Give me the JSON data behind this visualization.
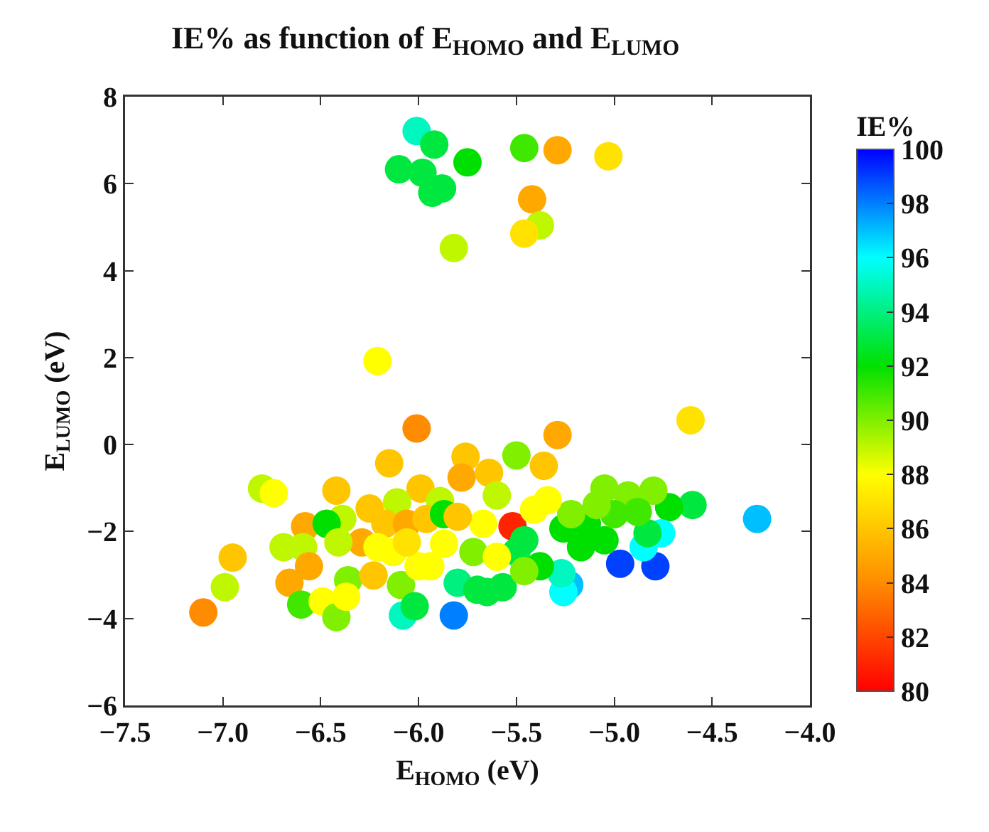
{
  "chart_data": {
    "type": "scatter",
    "title": "IE% as function of E$_{HOMO}$ and E$_{LUMO}$",
    "xlabel": "E$_{HOMO}$ (eV)",
    "ylabel": "E$_{LUMO}$ (eV)",
    "clabel": "IE%",
    "xlim": [
      -7.5,
      -4.0
    ],
    "xticks": [
      -7.5,
      {
        "value": -7,
        "label": "−7.0"
      },
      -6.5,
      {
        "value": -6,
        "label": "−6.0"
      },
      -5.5,
      {
        "value": -5,
        "label": "−5.0"
      },
      -4.5,
      {
        "value": -4,
        "label": "−4.0"
      }
    ],
    "ylim": [
      -6,
      8
    ],
    "yticks": [
      -6,
      -4,
      -2,
      0,
      2,
      4,
      6,
      8
    ],
    "clim": [
      80,
      100
    ],
    "cticks": [
      80,
      82,
      84,
      86,
      88,
      90,
      92,
      94,
      96,
      98,
      100
    ],
    "grid": false,
    "legend": false,
    "marker": "circle",
    "x": [
      -6.01,
      -5.92,
      -6.1,
      -5.98,
      -5.93,
      -5.88,
      -5.75,
      -5.46,
      -5.29,
      -5.03,
      -5.42,
      -5.38,
      -5.46,
      -5.82,
      -6.21,
      -6.01,
      -6.15,
      -5.76,
      -5.78,
      -5.99,
      -6.42,
      -6.8,
      -6.74,
      -6.25,
      -6.11,
      -5.89,
      -6.39,
      -6.58,
      -6.47,
      -6.29,
      -6.69,
      -6.59,
      -6.41,
      -6.56,
      -6.95,
      -6.66,
      -6.99,
      -7.1,
      -6.6,
      -6.49,
      -6.42,
      -6.36,
      -6.37,
      -6.23,
      -6.13,
      -6.09,
      -6.0,
      -5.94,
      -5.87,
      -6.08,
      -6.02,
      -5.8,
      -5.82,
      -6.17,
      -6.06,
      -5.96,
      -5.87,
      -6.21,
      -6.06,
      -5.72,
      -5.7,
      -4.61,
      -5.29,
      -5.5,
      -5.36,
      -5.64,
      -4.27,
      -4.6,
      -4.72,
      -4.8,
      -5.05,
      -4.93,
      -4.97,
      -4.79,
      -4.76,
      -4.85,
      -4.83,
      -5.52,
      -5.46,
      -5.5,
      -5.23,
      -5.26,
      -5.27,
      -5.57,
      -5.65,
      -5.38,
      -5.26,
      -5.14,
      -5.05,
      -5.0,
      -4.88,
      -5.09,
      -5.22,
      -5.34,
      -5.41,
      -5.6,
      -5.67,
      -5.6,
      -5.46,
      -5.17,
      -5.8
    ],
    "values": [
      7.21,
      6.9,
      6.33,
      6.25,
      5.79,
      5.89,
      6.49,
      6.82,
      6.77,
      6.63,
      5.64,
      5.04,
      4.85,
      4.52,
      1.92,
      0.37,
      -0.43,
      -0.28,
      -0.76,
      -1.01,
      -1.06,
      -1.01,
      -1.12,
      -1.47,
      -1.33,
      -1.3,
      -1.71,
      -1.88,
      -1.82,
      -2.25,
      -2.36,
      -2.36,
      -2.25,
      -2.8,
      -2.6,
      -3.18,
      -3.28,
      -3.86,
      -3.68,
      -3.61,
      -3.97,
      -3.12,
      -3.5,
      -3.01,
      -2.47,
      -3.23,
      -2.8,
      -2.8,
      -2.28,
      -3.93,
      -3.72,
      -3.18,
      -3.93,
      -1.82,
      -1.82,
      -1.71,
      -1.6,
      -2.36,
      -2.25,
      -2.47,
      -3.34,
      0.56,
      0.22,
      -0.25,
      -0.49,
      -0.65,
      -1.71,
      -1.39,
      -1.44,
      -1.06,
      -1.01,
      -1.17,
      -2.74,
      -2.8,
      -2.04,
      -2.36,
      -2.04,
      -1.88,
      -2.2,
      -2.47,
      -3.23,
      -3.39,
      -2.96,
      -3.28,
      -3.39,
      -2.8,
      -1.93,
      -1.82,
      -2.2,
      -1.6,
      -1.55,
      -1.39,
      -1.6,
      -1.28,
      -1.5,
      -1.17,
      -1.82,
      -2.58,
      -2.91,
      -2.36,
      -1.66
    ],
    "cvalues": [
      95,
      93,
      93,
      93,
      93,
      93,
      92,
      91,
      85,
      87,
      85,
      89,
      87,
      89,
      88,
      84,
      86,
      86,
      85,
      86,
      86,
      89,
      88,
      86,
      89,
      89,
      89,
      85,
      92,
      85,
      89,
      89,
      89,
      85,
      86,
      85,
      89,
      84,
      91,
      88,
      90,
      90,
      88,
      86,
      88,
      90,
      88,
      88,
      88,
      95,
      93,
      94,
      98,
      86,
      85,
      86,
      92,
      88,
      87,
      90,
      93,
      87,
      85,
      90,
      86,
      86,
      97,
      93,
      92,
      90,
      90,
      90,
      99,
      99,
      96,
      96,
      93,
      81,
      93,
      93,
      97,
      96,
      95,
      93,
      93,
      92,
      92,
      92,
      92,
      91,
      91,
      90,
      90,
      88,
      88,
      89,
      88,
      88,
      90,
      92,
      86
    ]
  }
}
